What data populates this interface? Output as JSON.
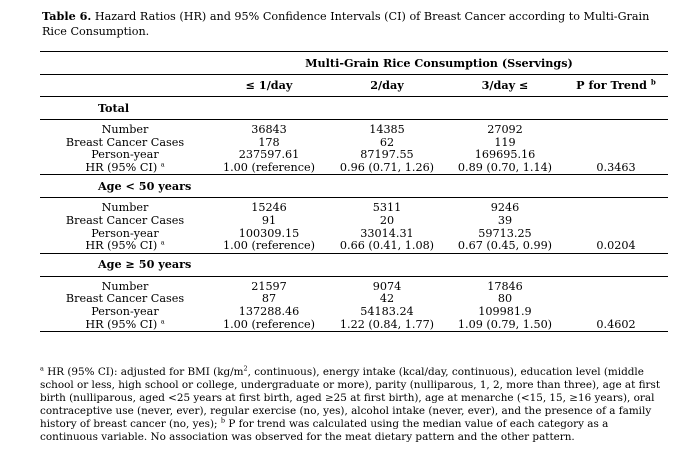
{
  "caption": {
    "label": "Table 6.",
    "text": " Hazard Ratios (HR) and 95% Confidence Intervals (CI) of Breast Cancer according to Multi-Grain Rice Consumption."
  },
  "table": {
    "group_header": "Multi-Grain Rice Consumption (Sservings)",
    "columns": [
      "≤ 1/day",
      "2/day",
      "3/day ≤",
      "P for Trend"
    ],
    "p_trend_marker": "b",
    "sections": [
      {
        "title": "Total",
        "rows": [
          {
            "label": "Number",
            "values": [
              "36843",
              "14385",
              "27092",
              ""
            ]
          },
          {
            "label": "Breast Cancer Cases",
            "values": [
              "178",
              "62",
              "119",
              ""
            ]
          },
          {
            "label": "Person-year",
            "values": [
              "237597.61",
              "87197.55",
              "169695.16",
              ""
            ]
          },
          {
            "label": "HR (95% CI)",
            "marker": "a",
            "values": [
              "1.00 (reference)",
              "0.96 (0.71, 1.26)",
              "0.89 (0.70, 1.14)",
              "0.3463"
            ]
          }
        ]
      },
      {
        "title": "Age < 50 years",
        "rows": [
          {
            "label": "Number",
            "values": [
              "15246",
              "5311",
              "9246",
              ""
            ]
          },
          {
            "label": "Breast Cancer Cases",
            "values": [
              "91",
              "20",
              "39",
              ""
            ]
          },
          {
            "label": "Person-year",
            "values": [
              "100309.15",
              "33014.31",
              "59713.25",
              ""
            ]
          },
          {
            "label": "HR (95% CI)",
            "marker": "a",
            "values": [
              "1.00 (reference)",
              "0.66 (0.41, 1.08)",
              "0.67 (0.45, 0.99)",
              "0.0204"
            ]
          }
        ]
      },
      {
        "title": "Age ≥ 50 years",
        "rows": [
          {
            "label": "Number",
            "values": [
              "21597",
              "9074",
              "17846",
              ""
            ]
          },
          {
            "label": "Breast Cancer Cases",
            "values": [
              "87",
              "42",
              "80",
              ""
            ]
          },
          {
            "label": "Person-year",
            "values": [
              "137288.46",
              "54183.24",
              "109981.9",
              ""
            ]
          },
          {
            "label": "HR (95% CI)",
            "marker": "a",
            "values": [
              "1.00 (reference)",
              "1.22 (0.84, 1.77)",
              "1.09 (0.79, 1.50)",
              "0.4602"
            ]
          }
        ]
      }
    ]
  },
  "footnotes": {
    "a_marker": "a",
    "a_text_1": " HR (95% CI): adjusted for BMI (kg/m",
    "a_sup": "2",
    "a_text_2": ", continuous), energy intake (kcal/day, continuous), education level (middle school or less, high school or college, undergraduate or more), parity (nulliparous, 1, 2, more than three), age at first birth (nulliparous, aged <25 years at first birth, aged ≥25 at first birth), age at menarche (<15, 15, ≥16 years), oral contraceptive use (never, ever), regular exercise (no, yes), alcohol intake (never, ever), and the presence of a family history of breast cancer (no, yes);",
    "b_marker": "b",
    "b_text": " P for trend was calculated using the median value of each category as a continuous variable. No association was observed for the meat dietary pattern and the other pattern."
  }
}
